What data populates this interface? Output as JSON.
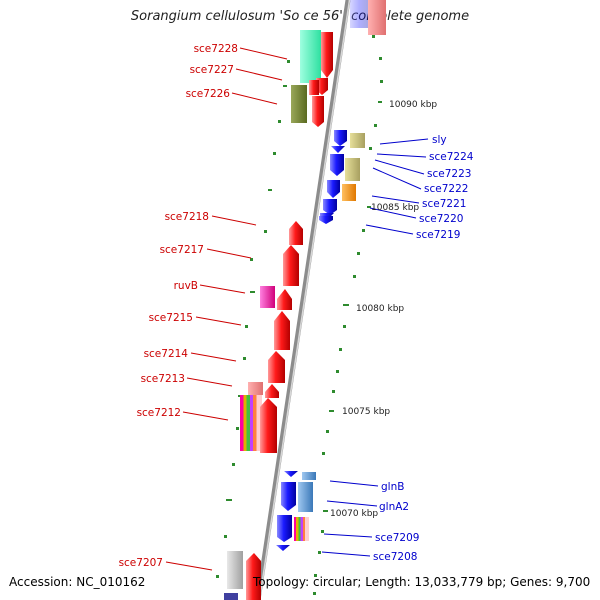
{
  "title": "Sorangium cellulosum 'So ce 56', complete genome",
  "footer": {
    "accession": "Accession: NC_010162",
    "summary": "Topology: circular; Length: 13,033,779 bp; Genes: 9,700"
  },
  "colors": {
    "forward_gene": "#ff0000",
    "reverse_gene": "#0000ff",
    "left_label": "#cc0000",
    "right_label": "#0000cc",
    "backbone": "#8c8c8c",
    "tick": "#2e8b2e"
  },
  "scale_labels": [
    "10090 kbp",
    "10085 kbp",
    "10080 kbp",
    "10075 kbp",
    "10070 kbp"
  ],
  "left_genes": [
    "sce7228",
    "sce7227",
    "sce7226",
    "sce7218",
    "sce7217",
    "ruvB",
    "sce7215",
    "sce7214",
    "sce7213",
    "sce7212",
    "sce7207"
  ],
  "right_genes": [
    "sly",
    "sce7224",
    "sce7223",
    "sce7222",
    "sce7221",
    "sce7220",
    "sce7219",
    "glnB",
    "glnA2",
    "sce7209",
    "sce7208"
  ]
}
